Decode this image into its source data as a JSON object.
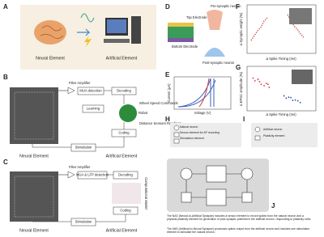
{
  "panels": {
    "A": {
      "label": "A",
      "neural": "Neural Element",
      "artificial": "Artificial Element"
    },
    "B": {
      "label": "B",
      "filter": "Filter Amplifier",
      "mua": "MUA detection",
      "decoding": "Decoding",
      "learning": "Learning",
      "wheel": "Wheel Speed Commands",
      "robot": "Robot",
      "sensors": "Distance Sensors Readings",
      "coding": "Coding",
      "stimulation": "Stimulation",
      "neural": "Neural Element",
      "artificial": "Artificial Element"
    },
    "C": {
      "label": "C",
      "filter": "Filter Amplifier",
      "mua": "MUA & LFP detection",
      "decoding": "Decoding",
      "model": "Computational Model",
      "coding": "Coding",
      "stimulation": "Stimulation",
      "neural": "Neural Element",
      "artificial": "Artificial Element"
    },
    "D": {
      "label": "D",
      "top": "Top Electrode",
      "bottom": "Bottom Electrode",
      "pre": "Pre-synaptic neuron",
      "post": "Post-synaptic neuron"
    },
    "E": {
      "label": "E",
      "ylabel": "Current (μA)",
      "xlabel": "Voltage (V)"
    },
    "F": {
      "label": "F",
      "ylabel": "Δ Synaptic weight (%)",
      "xlabel": "Δ Spike Timing (ms)"
    },
    "G": {
      "label": "G",
      "ylabel": "Δ EPSC amplitude (%)",
      "xlabel": "Δ Spike Timing (ms)"
    },
    "H": {
      "label": "H",
      "legend": [
        "Natural neuron",
        "Sensor element for AP recording",
        "Stimulation element"
      ]
    },
    "I": {
      "label": "I",
      "legend": [
        "Artificial neuron",
        "Plasticity element"
      ]
    },
    "J": {
      "label": "J",
      "nas": "The NAS (Neural-to-Artificial Synapse) includes a sensor element to record spikes from the natural neuron and a physical plasticity element for generation of post-synaptic potential in the artificial neuron, responding to plasticity rules.",
      "ans": "The ANS (Artificial-to-Neural Synapse) processes spikes output from the artificial neuron and includes one stimulation element to stimulate the natural neuron."
    }
  }
}
